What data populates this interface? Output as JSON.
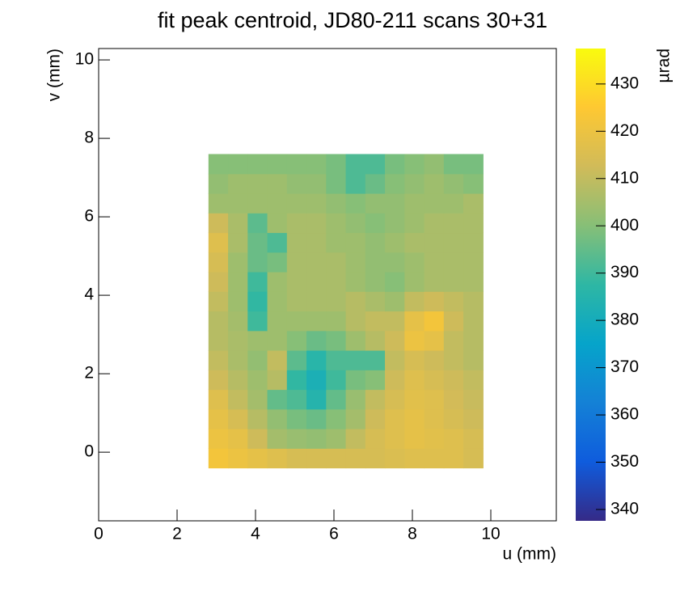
{
  "chart_data": {
    "type": "heatmap",
    "title": "fit peak centroid, JD80-211 scans 30+31",
    "x_label": "u (mm)",
    "y_label": "v (mm)",
    "colorbar_label": "µrad",
    "xlim": [
      0,
      11.67
    ],
    "ylim": [
      -1.75,
      10.29
    ],
    "xticks": [
      0,
      2,
      4,
      6,
      8,
      10
    ],
    "yticks": [
      0,
      2,
      4,
      6,
      8,
      10
    ],
    "zlim": [
      337.6,
      437.5
    ],
    "zticks": [
      340,
      350,
      360,
      370,
      380,
      390,
      400,
      410,
      420,
      430
    ],
    "colormap": [
      "#352a87",
      "#0f5cdd",
      "#1481d6",
      "#06a4ca",
      "#2eb7a4",
      "#87bf77",
      "#d1bb59",
      "#fec832",
      "#f9fb0e"
    ],
    "xbins": [
      2.8,
      3.3,
      3.8,
      4.3,
      4.8,
      5.3,
      5.8,
      6.3,
      6.8,
      7.3,
      7.8,
      8.3,
      8.8,
      9.3,
      9.8
    ],
    "ybins": [
      -0.4,
      0.1,
      0.6,
      1.1,
      1.6,
      2.1,
      2.6,
      3.1,
      3.6,
      4.1,
      4.6,
      5.1,
      5.6,
      6.1,
      6.6,
      7.1,
      7.6
    ],
    "values": [
      [
        422,
        420,
        418,
        416,
        414,
        414,
        414,
        414,
        414,
        415,
        416,
        416,
        416,
        414
      ],
      [
        420,
        418,
        412,
        405,
        403,
        402,
        404,
        410,
        414,
        416,
        418,
        417,
        416,
        414
      ],
      [
        418,
        414,
        408,
        402,
        398,
        396,
        400,
        405,
        412,
        416,
        418,
        416,
        414,
        412
      ],
      [
        416,
        410,
        405,
        395,
        392,
        385,
        395,
        403,
        410,
        414,
        417,
        416,
        413,
        411
      ],
      [
        412,
        408,
        404,
        408,
        388,
        382,
        390,
        398,
        400,
        412,
        416,
        414,
        412,
        410
      ],
      [
        410,
        406,
        402,
        410,
        394,
        386,
        392,
        392,
        392,
        410,
        414,
        412,
        410,
        408
      ],
      [
        408,
        406,
        404,
        404,
        400,
        396,
        398,
        404,
        408,
        412,
        420,
        418,
        410,
        408
      ],
      [
        408,
        405,
        390,
        404,
        404,
        404,
        404,
        408,
        410,
        410,
        418,
        422,
        412,
        408
      ],
      [
        410,
        404,
        388,
        404,
        406,
        406,
        406,
        408,
        406,
        404,
        410,
        412,
        410,
        408
      ],
      [
        412,
        404,
        390,
        404,
        406,
        406,
        406,
        404,
        402,
        400,
        404,
        406,
        406,
        406
      ],
      [
        414,
        404,
        396,
        398,
        406,
        406,
        406,
        404,
        402,
        402,
        404,
        406,
        406,
        406
      ],
      [
        416,
        406,
        396,
        392,
        406,
        406,
        404,
        404,
        402,
        404,
        406,
        406,
        406,
        406
      ],
      [
        412,
        406,
        394,
        404,
        406,
        406,
        404,
        402,
        400,
        402,
        404,
        406,
        406,
        406
      ],
      [
        404,
        404,
        404,
        404,
        404,
        404,
        402,
        400,
        402,
        402,
        404,
        404,
        404,
        406
      ],
      [
        402,
        404,
        404,
        404,
        402,
        402,
        398,
        392,
        396,
        400,
        402,
        404,
        402,
        400
      ],
      [
        400,
        400,
        400,
        400,
        400,
        400,
        398,
        392,
        392,
        398,
        400,
        402,
        398,
        398
      ]
    ]
  }
}
